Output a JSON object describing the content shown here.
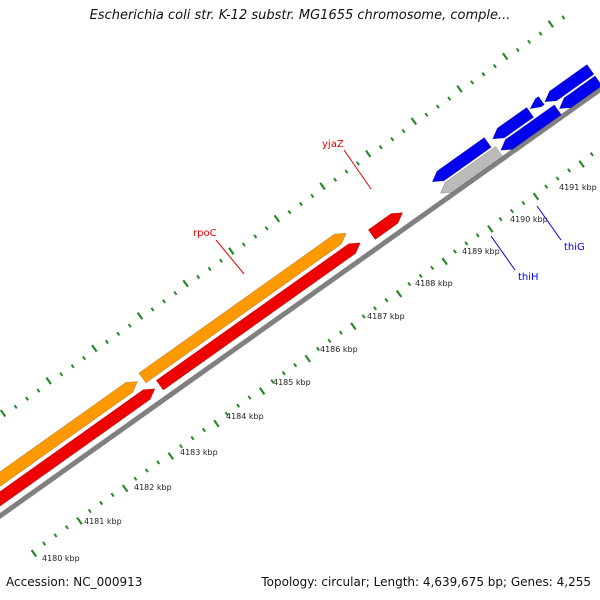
{
  "map": {
    "title": "Escherichia coli str. K-12 substr. MG1655 chromosome, comple...",
    "footer_accession": "Accession: NC_000913",
    "footer_stats": "Topology: circular; Length: 4,639,675 bp; Genes: 4,255"
  },
  "colors": {
    "backbone": "#808080",
    "forward_cds": "#ee0000",
    "forward_gene": "#ff9900",
    "reverse_cds": "#0000ee",
    "reverse_other": "#bbbbbb",
    "ticks": "#2a8a2a"
  },
  "ticks": [
    {
      "label": "4180 kbp"
    },
    {
      "label": "4181 kbp"
    },
    {
      "label": "4182 kbp"
    },
    {
      "label": "4183 kbp"
    },
    {
      "label": "4184 kbp"
    },
    {
      "label": "4185 kbp"
    },
    {
      "label": "4186 kbp"
    },
    {
      "label": "4187 kbp"
    },
    {
      "label": "4188 kbp"
    },
    {
      "label": "4189 kbp"
    },
    {
      "label": "4190 kbp"
    },
    {
      "label": "4191 kbp"
    }
  ],
  "gene_labels": [
    {
      "text": "yjaZ",
      "color": "#ee0000"
    },
    {
      "text": "rpoC",
      "color": "#ee0000"
    },
    {
      "text": "thiG",
      "color": "#0000ee"
    },
    {
      "text": "thiH",
      "color": "#0000ee"
    }
  ]
}
